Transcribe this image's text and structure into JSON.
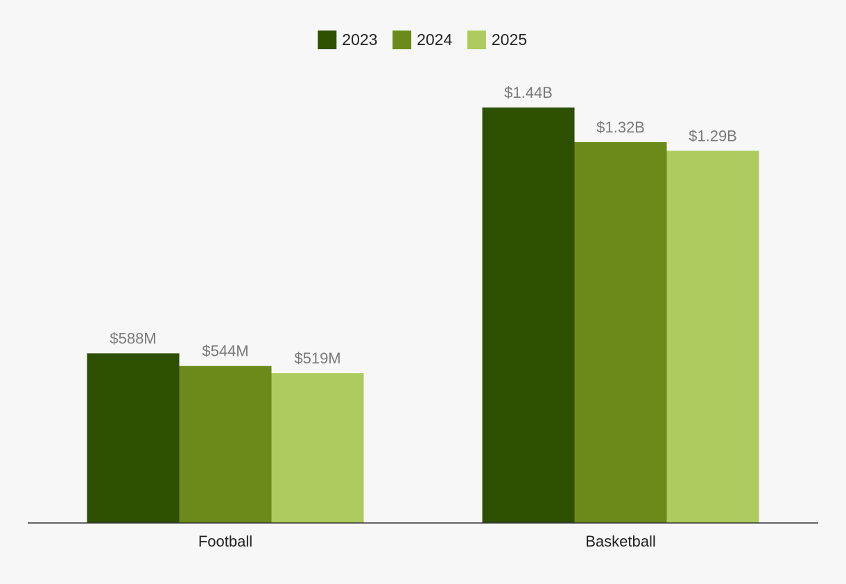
{
  "chart_data": {
    "type": "bar",
    "title": "",
    "xlabel": "",
    "ylabel": "",
    "categories": [
      "Football",
      "Basketball"
    ],
    "series": [
      {
        "name": "2023",
        "color": "#2d4f00",
        "values": [
          588,
          1440
        ],
        "labels": [
          "$588M",
          "$1.44B"
        ]
      },
      {
        "name": "2024",
        "color": "#6b8a19",
        "values": [
          544,
          1320
        ],
        "labels": [
          "$544M",
          "$1.32B"
        ]
      },
      {
        "name": "2025",
        "color": "#adcb5e",
        "values": [
          519,
          1290
        ],
        "labels": [
          "$519M",
          "$1.29B"
        ]
      }
    ],
    "value_unit": "USD millions",
    "ylim": [
      0,
      1440
    ],
    "grid": false,
    "legend_position": "top-center"
  }
}
